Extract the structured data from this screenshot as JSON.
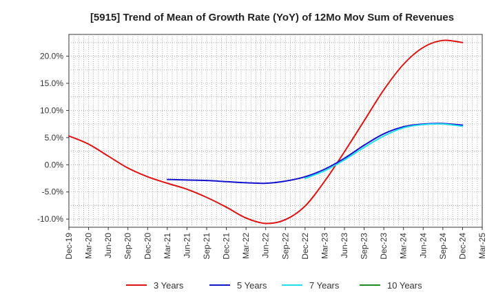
{
  "chart_data": {
    "type": "line",
    "title": "[5915]  Trend of Mean of Growth Rate (YoY) of 12Mo Mov Sum of Revenues",
    "xlabel": "",
    "ylabel": "",
    "x_tick_labels": [
      "Dec-19",
      "Mar-20",
      "Jun-20",
      "Sep-20",
      "Dec-20",
      "Mar-21",
      "Jun-21",
      "Sep-21",
      "Dec-21",
      "Mar-22",
      "Jun-22",
      "Sep-22",
      "Dec-22",
      "Mar-23",
      "Jun-23",
      "Sep-23",
      "Dec-23",
      "Mar-24",
      "Jun-24",
      "Sep-24",
      "Dec-24",
      "Mar-25"
    ],
    "y_ticks": [
      20.0,
      15.0,
      10.0,
      5.0,
      0.0,
      -5.0,
      -10.0
    ],
    "y_tick_labels": [
      "20.0%",
      "15.0%",
      "10.0%",
      "5.0%",
      "0.0%",
      "-5.0%",
      "-10.0%"
    ],
    "ylim": [
      -11.5,
      24.0
    ],
    "xlim": [
      0,
      21
    ],
    "grid": true,
    "legend_position": "bottom",
    "series": [
      {
        "name": "3 Years",
        "color": "#dd1111",
        "points": [
          [
            0,
            5.3
          ],
          [
            1,
            3.8
          ],
          [
            2,
            1.6
          ],
          [
            3,
            -0.6
          ],
          [
            4,
            -2.2
          ],
          [
            5,
            -3.4
          ],
          [
            6,
            -4.5
          ],
          [
            7,
            -6.0
          ],
          [
            8,
            -7.8
          ],
          [
            9,
            -9.8
          ],
          [
            10,
            -10.8
          ],
          [
            11,
            -10.1
          ],
          [
            12,
            -7.6
          ],
          [
            13,
            -3.0
          ],
          [
            14,
            2.4
          ],
          [
            15,
            8.1
          ],
          [
            16,
            13.8
          ],
          [
            17,
            18.5
          ],
          [
            18,
            21.6
          ],
          [
            19,
            22.9
          ],
          [
            20,
            22.5
          ]
        ]
      },
      {
        "name": "5 Years",
        "color": "#1111cc",
        "points": [
          [
            5,
            -2.7
          ],
          [
            6,
            -2.8
          ],
          [
            7,
            -2.9
          ],
          [
            8,
            -3.1
          ],
          [
            9,
            -3.3
          ],
          [
            10,
            -3.4
          ],
          [
            11,
            -3.0
          ],
          [
            12,
            -2.2
          ],
          [
            13,
            -0.8
          ],
          [
            14,
            1.2
          ],
          [
            15,
            3.6
          ],
          [
            16,
            5.7
          ],
          [
            17,
            7.0
          ],
          [
            18,
            7.5
          ],
          [
            19,
            7.6
          ],
          [
            20,
            7.3
          ]
        ]
      },
      {
        "name": "7 Years",
        "color": "#22ddee",
        "points": [
          [
            12,
            -2.5
          ],
          [
            13,
            -1.1
          ],
          [
            14,
            0.9
          ],
          [
            15,
            3.2
          ],
          [
            16,
            5.3
          ],
          [
            17,
            6.8
          ],
          [
            18,
            7.4
          ],
          [
            19,
            7.5
          ],
          [
            20,
            7.1
          ]
        ]
      },
      {
        "name": "10 Years",
        "color": "#228822",
        "points": []
      }
    ]
  }
}
